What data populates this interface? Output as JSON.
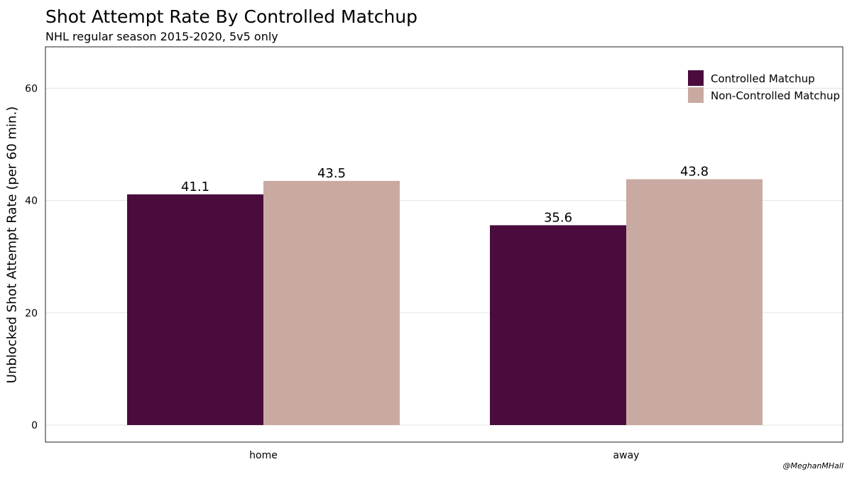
{
  "chart_data": {
    "type": "bar",
    "title": "Shot Attempt Rate By Controlled Matchup",
    "subtitle": "NHL regular season 2015-2020, 5v5 only",
    "xlabel": "",
    "ylabel": "Unblocked Shot Attempt Rate (per 60 min.)",
    "categories": [
      "home",
      "away"
    ],
    "series": [
      {
        "name": "Controlled Matchup",
        "color": "#4a0c3c",
        "values": [
          41.1,
          35.6
        ]
      },
      {
        "name": "Non-Controlled Matchup",
        "color": "#c9aaa3",
        "values": [
          43.5,
          43.8
        ]
      }
    ],
    "ylim": [
      0,
      66
    ],
    "yticks": [
      "0",
      "20",
      "40",
      "60"
    ],
    "data_labels": [
      [
        "41.1",
        "35.6"
      ],
      [
        "43.5",
        "43.8"
      ]
    ],
    "grid": true,
    "legend": "top-right",
    "caption": "@MeghanMHall"
  }
}
